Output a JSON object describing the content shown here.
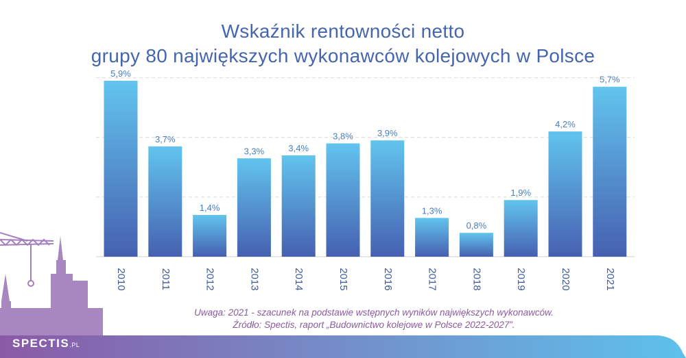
{
  "title": {
    "line1": "Wskaźnik rentowności netto",
    "line2": "grupy 80 największych wykonawców kolejowych w Polsce"
  },
  "note": {
    "line1": "Uwaga: 2021 - szacunek na podstawie wstępnych wyników największych wykonawców.",
    "line2": "Źródło: Spectis, raport „Budownictwo kolejowe w Polsce 2022-2027”."
  },
  "logo": {
    "brand": "SPECTIS",
    "suffix": ".PL"
  },
  "colors": {
    "title": "#4566ae",
    "label": "#4a7fc0",
    "bar_top": "#62c4ee",
    "bar_bottom": "#4660b0",
    "note": "#8a5a9e",
    "footer_start": "#8a5aa6",
    "footer_end": "#5dc1ec"
  },
  "chart_data": {
    "type": "bar",
    "categories": [
      "2010",
      "2011",
      "2012",
      "2013",
      "2014",
      "2015",
      "2016",
      "2017",
      "2018",
      "2019",
      "2020",
      "2021"
    ],
    "values": [
      5.9,
      3.7,
      1.4,
      3.3,
      3.4,
      3.8,
      3.9,
      1.3,
      0.8,
      1.9,
      4.2,
      5.7
    ],
    "value_labels": [
      "5,9%",
      "3,7%",
      "1,4%",
      "3,3%",
      "3,4%",
      "3,8%",
      "3,9%",
      "1,3%",
      "0,8%",
      "1,9%",
      "4,2%",
      "5,7%"
    ],
    "ylim": [
      0,
      6
    ],
    "gridlines": [
      2,
      4,
      6
    ],
    "grid": true,
    "legend": "none",
    "xlabel": "",
    "ylabel": ""
  }
}
